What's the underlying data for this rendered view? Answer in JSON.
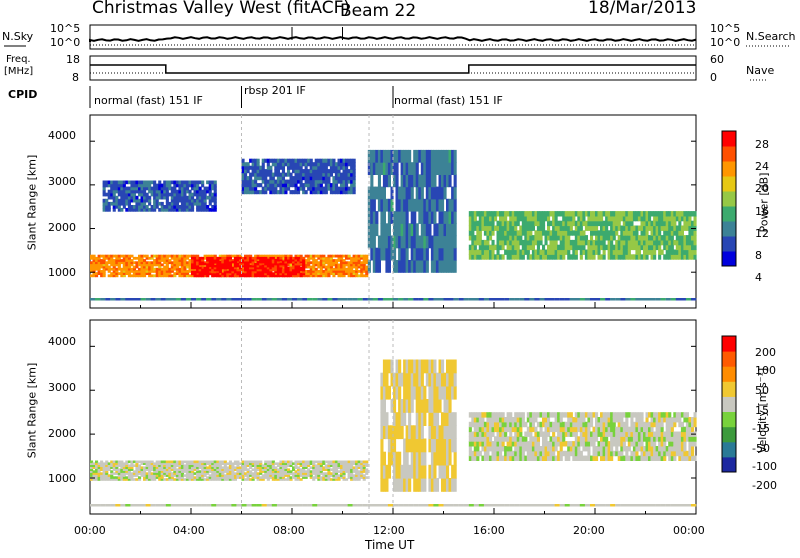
{
  "header": {
    "title": "Christmas Valley West (fitACF)",
    "beam": "Beam 22",
    "date": "18/Mar/2013"
  },
  "noise_panel": {
    "left_label": "N.Sky",
    "right_label": "N.Search",
    "left_ticks": [
      "10^5",
      "10^0"
    ],
    "right_ticks": [
      "10^5",
      "10^0"
    ]
  },
  "freq_panel": {
    "left_label_line1": "Freq.",
    "left_label_line2": "[MHz]",
    "left_ticks": [
      "18",
      "8"
    ],
    "right_ticks": [
      "60",
      "0"
    ],
    "right_label": "Nave"
  },
  "cpid_panel": {
    "label": "CPID",
    "modes": [
      {
        "label": "normal (fast) 151 IF",
        "start": "00:00",
        "end": "06:00"
      },
      {
        "label": "rbsp 201 IF",
        "start": "06:00",
        "end": "12:00"
      },
      {
        "label": "normal (fast) 151 IF",
        "start": "12:00",
        "end": "24:00"
      }
    ]
  },
  "power_panel": {
    "ylabel": "Slant Range [km]",
    "yticks": [
      "4000",
      "3000",
      "2000",
      "1000"
    ],
    "colorbar_label": "Power [dB]",
    "colorbar_ticks": [
      "28",
      "24",
      "20",
      "16",
      "12",
      "8",
      "4"
    ],
    "colors": [
      "#0000dd",
      "#2846b4",
      "#3c8296",
      "#3caa6e",
      "#96c846",
      "#e6c814",
      "#ff9600",
      "#ff5000",
      "#ff0000"
    ]
  },
  "velocity_panel": {
    "ylabel": "Slant Range [km]",
    "yticks": [
      "4000",
      "3000",
      "2000",
      "1000"
    ],
    "colorbar_label": "Velocity [m s⁻¹]",
    "colorbar_ticks": [
      "200",
      "100",
      "50",
      "15",
      "-15",
      "-50",
      "-100",
      "-200"
    ],
    "colors": [
      "#1c28a0",
      "#2a7a96",
      "#3c9a3c",
      "#78d23c",
      "#c8c8c0",
      "#f0c832",
      "#ff8c00",
      "#ff5a00",
      "#ff0000"
    ]
  },
  "xaxis": {
    "label": "Time UT",
    "ticks": [
      "00:00",
      "04:00",
      "08:00",
      "12:00",
      "16:00",
      "20:00",
      "00:00"
    ]
  },
  "chart_data": {
    "type": "heatmap",
    "title": "Christmas Valley West (fitACF)",
    "subtitle": "Beam 22",
    "date": "18/Mar/2013",
    "xlabel": "Time UT",
    "x_range_hours": [
      0,
      24
    ],
    "frequency_MHz": [
      {
        "start_hour": 0,
        "end_hour": 3,
        "value": 14.5
      },
      {
        "start_hour": 3,
        "end_hour": 15,
        "value": 10.5
      },
      {
        "start_hour": 15,
        "end_hour": 24,
        "value": 14.5
      }
    ],
    "panels": [
      {
        "name": "power",
        "ylabel": "Slant Range [km]",
        "ylim": [
          180,
          4600
        ],
        "colorbar": "Power [dB]",
        "clim": [
          0,
          32
        ],
        "features": [
          {
            "start_hour": 0,
            "end_hour": 11,
            "range_km": [
              900,
              1400
            ],
            "value_db": 24
          },
          {
            "start_hour": 4,
            "end_hour": 8.5,
            "range_km": [
              900,
              1350
            ],
            "value_db": 30
          },
          {
            "start_hour": 0.5,
            "end_hour": 5,
            "range_km": [
              2400,
              3100
            ],
            "value_db": 6
          },
          {
            "start_hour": 6,
            "end_hour": 10.5,
            "range_km": [
              2800,
              3600
            ],
            "value_db": 6
          },
          {
            "start_hour": 11,
            "end_hour": 14.5,
            "range_km": [
              1000,
              3800
            ],
            "value_db": 8
          },
          {
            "start_hour": 15,
            "end_hour": 24,
            "range_km": [
              1300,
              2400
            ],
            "value_db": 14
          }
        ]
      },
      {
        "name": "velocity",
        "ylabel": "Slant Range [km]",
        "ylim": [
          180,
          4600
        ],
        "colorbar": "Velocity [m s⁻¹]",
        "clim": [
          -200,
          200
        ],
        "features": [
          {
            "start_hour": 0,
            "end_hour": 11,
            "range_km": [
              950,
              1400
            ],
            "value_ms": 0
          },
          {
            "start_hour": 11.5,
            "end_hour": 14.5,
            "range_km": [
              700,
              3700
            ],
            "value_ms": 30
          },
          {
            "start_hour": 15,
            "end_hour": 24,
            "range_km": [
              1400,
              2500
            ],
            "value_ms": 0
          }
        ]
      }
    ]
  }
}
